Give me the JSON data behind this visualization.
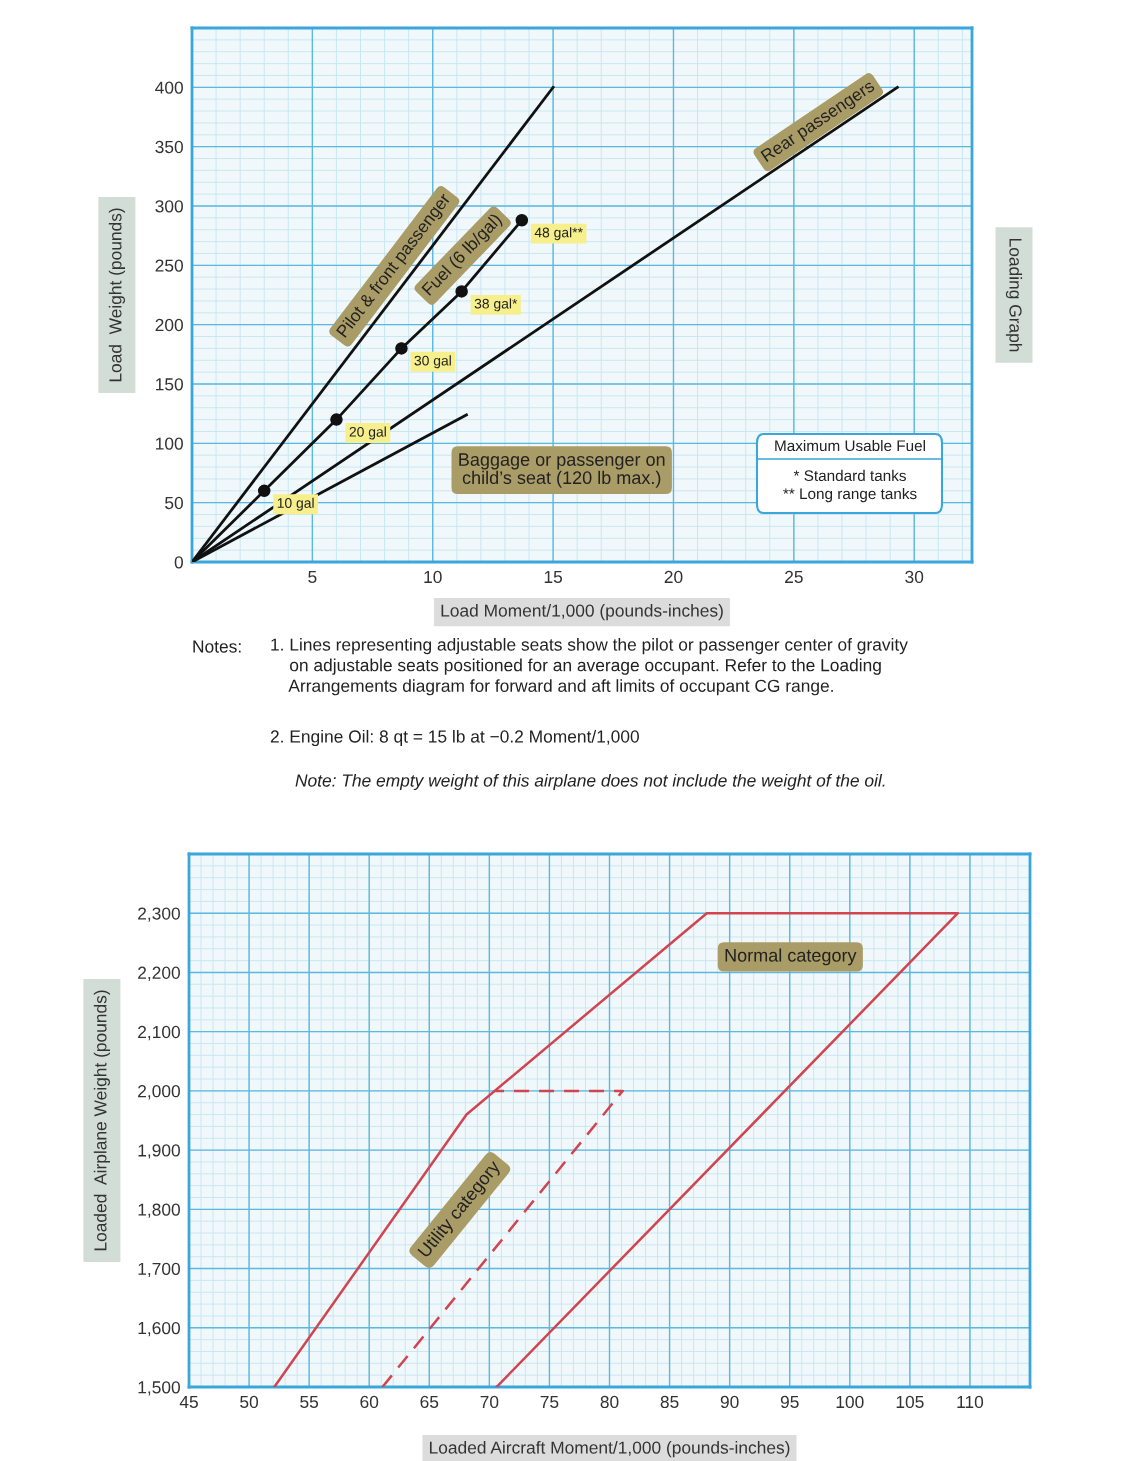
{
  "chart_data": [
    {
      "type": "line",
      "xlabel": "Load Moment/1,000 (pounds-inches)",
      "ylabel": "Load  Weight (pounds)",
      "xlim": [
        0,
        32.4
      ],
      "ylim": [
        0,
        450
      ],
      "xticks": [
        5,
        10,
        15,
        20,
        25,
        30
      ],
      "yticks": [
        0,
        50,
        100,
        150,
        200,
        250,
        300,
        350,
        400
      ],
      "grid": true,
      "series": [
        {
          "name": "Pilot & front passenger",
          "color": "#111111",
          "x": [
            0,
            15
          ],
          "values": [
            0,
            400
          ]
        },
        {
          "name": "Fuel (6 lb/gal)",
          "color": "#111111",
          "x": [
            0,
            3.0,
            6.0,
            8.7,
            11.2,
            13.7
          ],
          "values": [
            0,
            60,
            120,
            180,
            228,
            288
          ],
          "marker": "circle"
        },
        {
          "name": "Rear passengers",
          "color": "#111111",
          "x": [
            0,
            29.3
          ],
          "values": [
            0,
            400
          ]
        },
        {
          "name": "Baggage or passenger on\nchild’s seat (120 lb max.)",
          "color": "#111111",
          "x": [
            0,
            11.4
          ],
          "values": [
            0,
            124
          ]
        }
      ],
      "annotations": [
        "Maximum Usable Fuel",
        "* Standard tanks\n** Long range tanks",
        "Notes:",
        "1. Lines representing adjustable seats show the pilot or passenger center of gravity\n    on adjustable seats positioned for an average occupant. Refer to the Loading\n    Arrangements diagram for forward and aft limits of occupant CG range.",
        "2. Engine Oil: 8 qt = 15 lb at −0.2 Moment/1,000",
        "Note: The empty weight of this airplane does not include the weight of the oil.",
        "Loading Graph",
        {
          "text": "10 gal",
          "x": 3.0,
          "y": 60
        },
        {
          "text": "20 gal",
          "x": 6.0,
          "y": 120
        },
        {
          "text": "30 gal",
          "x": 8.7,
          "y": 180
        },
        {
          "text": "38 gal*",
          "x": 11.2,
          "y": 228
        },
        {
          "text": "48 gal**",
          "x": 13.7,
          "y": 288
        }
      ]
    },
    {
      "type": "line",
      "xlabel": "Loaded Aircraft Moment/1,000 (pounds-inches)",
      "ylabel": "Loaded  Airplane Weight (pounds)",
      "xlim": [
        45,
        115
      ],
      "ylim": [
        1500,
        2400
      ],
      "xticks": [
        45,
        50,
        55,
        60,
        65,
        70,
        75,
        80,
        85,
        90,
        95,
        100,
        105,
        110
      ],
      "yticks": [
        {
          "value": 1500,
          "label": "1,500"
        },
        {
          "value": 1600,
          "label": "1,600"
        },
        {
          "value": 1700,
          "label": "1,700"
        },
        {
          "value": 1800,
          "label": "1,800"
        },
        {
          "value": 1900,
          "label": "1,900"
        },
        {
          "value": 2000,
          "label": "2,000"
        },
        {
          "value": 2100,
          "label": "2,100"
        },
        {
          "value": 2200,
          "label": "2,200"
        },
        {
          "value": 2300,
          "label": "2,300"
        }
      ],
      "grid": true,
      "series": [
        {
          "name": "Normal category",
          "color": "#d0454f",
          "x": [
            52.1,
            68.1,
            88.1,
            109.0,
            70.6
          ],
          "values": [
            1500,
            1960,
            2300,
            2300,
            1500
          ]
        },
        {
          "name": "Utility category",
          "color": "#d0454f",
          "line_style": "dashed",
          "x": [
            61.1,
            81.1,
            70.5
          ],
          "values": [
            1500,
            2000,
            2000
          ]
        }
      ]
    }
  ]
}
